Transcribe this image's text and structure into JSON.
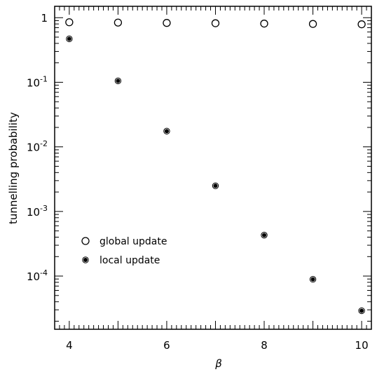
{
  "chart_data": {
    "type": "scatter",
    "title": "",
    "xlabel": "β",
    "ylabel": "tunnelling probability",
    "xlim": [
      3.7,
      10.2
    ],
    "ylim": [
      1.5e-05,
      1.5
    ],
    "yscale": "log",
    "grid": false,
    "legend_position": "lower-left",
    "x_ticks": [
      4,
      6,
      8,
      10
    ],
    "x_tick_labels": [
      "4",
      "6",
      "8",
      "10"
    ],
    "y_ticks": [
      1,
      0.1,
      0.01,
      0.001,
      0.0001
    ],
    "y_tick_labels": [
      {
        "base": "1",
        "exp": ""
      },
      {
        "base": "10",
        "exp": "-1"
      },
      {
        "base": "10",
        "exp": "-2"
      },
      {
        "base": "10",
        "exp": "-3"
      },
      {
        "base": "10",
        "exp": "-4"
      }
    ],
    "series": [
      {
        "name": "global update",
        "marker": "open-circle",
        "x": [
          4,
          5,
          6,
          7,
          8,
          9,
          10
        ],
        "y": [
          0.85,
          0.84,
          0.83,
          0.82,
          0.81,
          0.8,
          0.79
        ]
      },
      {
        "name": "local update",
        "marker": "filled-circle",
        "x": [
          4,
          5,
          6,
          7,
          8,
          9,
          10
        ],
        "y": [
          0.47,
          0.105,
          0.0175,
          0.0025,
          0.00043,
          8.9e-05,
          2.9e-05
        ]
      }
    ]
  }
}
